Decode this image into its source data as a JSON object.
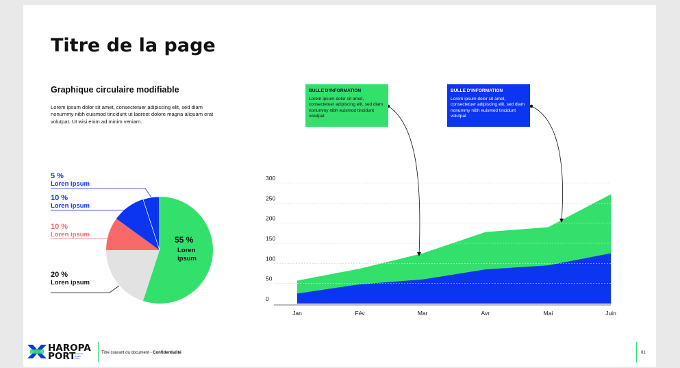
{
  "page": {
    "title": "Titre de la page",
    "section_title": "Graphique circulaire modifiable",
    "section_body": "Lorem ipsum dolor sit amet, consectetuer adipiscing elit, sed diam nonummy nibh euismod tincidunt ut laoreet dolore magna aliquam erat volutpat. Ut wisi enim ad minim veniam."
  },
  "pie": {
    "slices": [
      {
        "pct": "55 %",
        "value": 55,
        "label": "Loren ipsum",
        "color": "#34e06c",
        "inner": true,
        "inner_label_1": "Loren",
        "inner_label_2": "ipsum"
      },
      {
        "pct": "20 %",
        "value": 20,
        "label": "Loren ipsum",
        "color": "#e2e2e2",
        "text_color": "#111111"
      },
      {
        "pct": "10 %",
        "value": 10,
        "label": "Loren ipsum",
        "color": "#f86a6a",
        "text_color": "#f86a6a"
      },
      {
        "pct": "10 %",
        "value": 10,
        "label": "Loren ipsum",
        "color": "#0b35f0",
        "text_color": "#0b35f0"
      },
      {
        "pct": "5 %",
        "value": 5,
        "label": "Loren ipsum",
        "color": "#0b35f0",
        "text_color": "#0b35f0"
      }
    ]
  },
  "callouts": [
    {
      "title": "BULLE D'INFORMATION",
      "body": "Lorem ipsum dolor sit amet, consectetuer adipiscing elit, sed diam nonummy nibh euismod tincidunt volutpat",
      "color": "green"
    },
    {
      "title": "BULLE D'INFORMATION",
      "body": "Lorem ipsum dolor sit amet, consectetuer adipiscing elit, sed diam nonummy nibh euismod tincidunt volutpat",
      "color": "blue"
    }
  ],
  "chart_data": {
    "type": "area",
    "categories": [
      "Jan",
      "Fév",
      "Mar",
      "Avr",
      "Mai",
      "Juin"
    ],
    "yticks": [
      "0",
      "50",
      "100",
      "150",
      "200",
      "250",
      "300"
    ],
    "ylim": [
      0,
      300
    ],
    "series": [
      {
        "values": [
          57,
          87,
          125,
          178,
          190,
          272
        ],
        "color": "#34e06c"
      },
      {
        "values": [
          25,
          48,
          60,
          85,
          95,
          125
        ],
        "color": "#0b35f0"
      }
    ],
    "grid": true
  },
  "footer": {
    "logo_line1": "HAROPA",
    "logo_line2": "PORT",
    "logo_small": "Le Havre Rouen Paris",
    "doc_title": "Titre courant du document - ",
    "confidential": "Confidentialité",
    "page_number": "01"
  }
}
